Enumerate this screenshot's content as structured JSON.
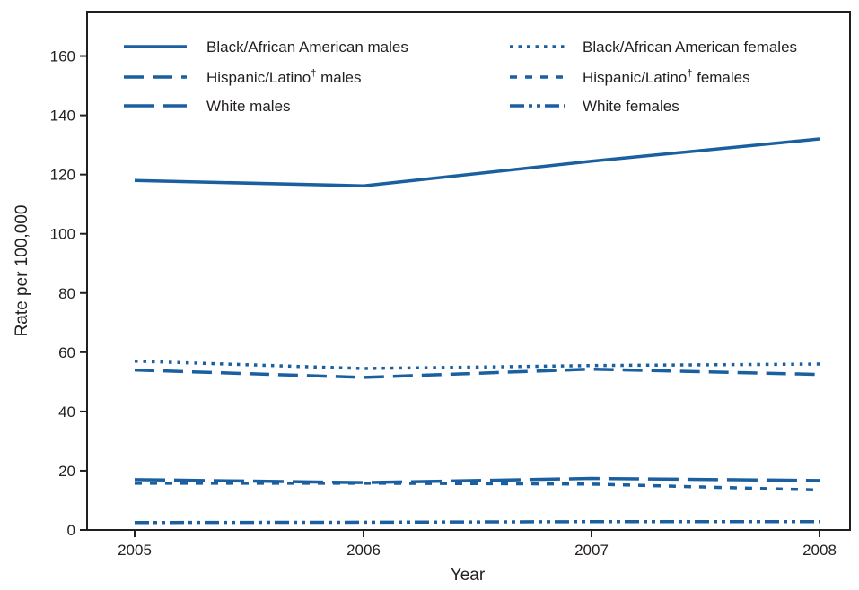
{
  "chart_data": {
    "type": "line",
    "title": "",
    "xlabel": "Year",
    "ylabel": "Rate per 100,000",
    "x": [
      2005,
      2006,
      2007,
      2008
    ],
    "x_tick_labels": [
      "2005",
      "2006",
      "2007",
      "2008"
    ],
    "ylim": [
      0,
      175
    ],
    "y_ticks": [
      0,
      20,
      40,
      60,
      80,
      100,
      120,
      140,
      160
    ],
    "y_tick_labels": [
      "0",
      "20",
      "40",
      "60",
      "80",
      "100",
      "120",
      "140",
      "160"
    ],
    "grid": false,
    "legend_position": "top",
    "line_color": "#1a5fa0",
    "series": [
      {
        "name": "Black/African American males",
        "name_main": "Black/African American males",
        "name_sup": "",
        "name_tail": "",
        "style": "solid",
        "values": [
          118,
          116.2,
          124.5,
          132
        ]
      },
      {
        "name": "Hispanic/Latino† males",
        "name_main": "Hispanic/Latino",
        "name_sup": "†",
        "name_tail": " males",
        "style": "dashed",
        "values": [
          54,
          51.5,
          54.3,
          52.5
        ]
      },
      {
        "name": "White males",
        "name_main": "White males",
        "name_sup": "",
        "name_tail": "",
        "style": "longdash",
        "values": [
          17,
          16,
          17.4,
          16.7
        ]
      },
      {
        "name": "Black/African American females",
        "name_main": "Black/African American females",
        "name_sup": "",
        "name_tail": "",
        "style": "dotted",
        "values": [
          57,
          54.5,
          55.5,
          56
        ]
      },
      {
        "name": "Hispanic/Latino† females",
        "name_main": "Hispanic/Latino",
        "name_sup": "†",
        "name_tail": " females",
        "style": "shortdash",
        "values": [
          15.8,
          15.8,
          15.5,
          13.5
        ]
      },
      {
        "name": "White females",
        "name_main": "White females",
        "name_sup": "",
        "name_tail": "",
        "style": "dashdotdot",
        "values": [
          2.5,
          2.6,
          2.8,
          2.8
        ]
      }
    ]
  }
}
